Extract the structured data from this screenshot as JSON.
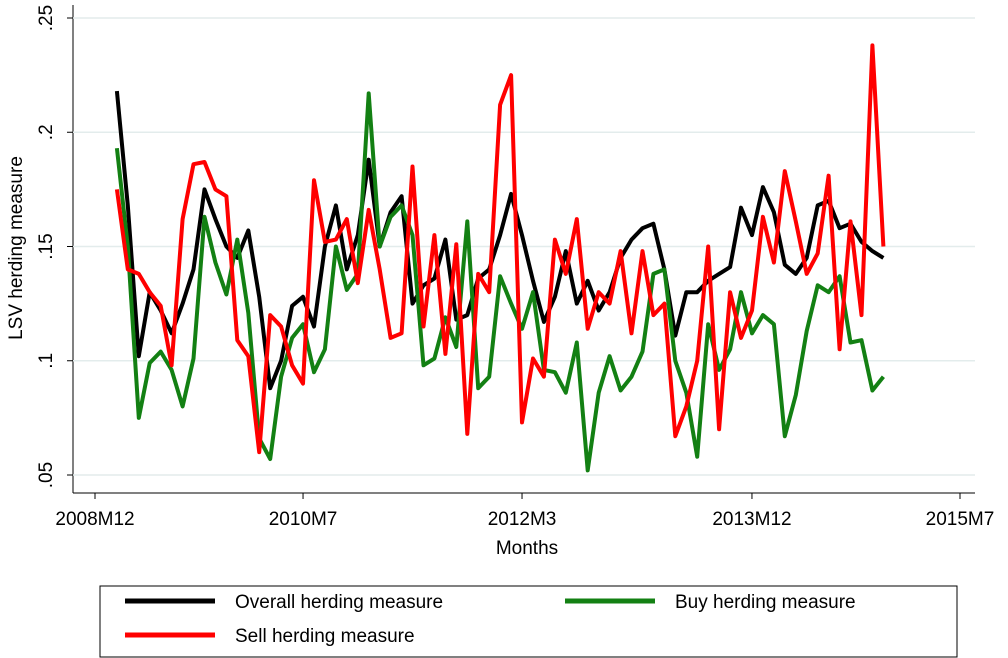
{
  "chart_data": {
    "type": "line",
    "ylabel": "LSV herding measure",
    "xlabel": "Months",
    "x": [
      "2009-02",
      "2009-03",
      "2009-04",
      "2009-05",
      "2009-06",
      "2009-07",
      "2009-08",
      "2009-09",
      "2009-10",
      "2009-11",
      "2009-12",
      "2010-01",
      "2010-02",
      "2010-03",
      "2010-04",
      "2010-05",
      "2010-06",
      "2010-07",
      "2010-08",
      "2010-09",
      "2010-10",
      "2010-11",
      "2010-12",
      "2011-01",
      "2011-02",
      "2011-03",
      "2011-04",
      "2011-05",
      "2011-06",
      "2011-07",
      "2011-08",
      "2011-09",
      "2011-10",
      "2011-11",
      "2011-12",
      "2012-01",
      "2012-02",
      "2012-03",
      "2012-04",
      "2012-05",
      "2012-06",
      "2012-07",
      "2012-08",
      "2012-09",
      "2012-10",
      "2012-11",
      "2012-12",
      "2013-01",
      "2013-02",
      "2013-03",
      "2013-04",
      "2013-05",
      "2013-06",
      "2013-07",
      "2013-08",
      "2013-09",
      "2013-10",
      "2013-11",
      "2013-12",
      "2014-01",
      "2014-02",
      "2014-03",
      "2014-04",
      "2014-05",
      "2014-06",
      "2014-07",
      "2014-08",
      "2014-09",
      "2014-10",
      "2014-11",
      "2014-12"
    ],
    "series": [
      {
        "name": "Overall herding measure",
        "color": "#000000",
        "values": [
          0.218,
          0.168,
          0.102,
          0.13,
          0.122,
          0.112,
          0.125,
          0.14,
          0.175,
          0.162,
          0.15,
          0.145,
          0.157,
          0.128,
          0.088,
          0.1,
          0.124,
          0.128,
          0.115,
          0.15,
          0.168,
          0.14,
          0.155,
          0.188,
          0.15,
          0.165,
          0.172,
          0.125,
          0.133,
          0.136,
          0.153,
          0.118,
          0.12,
          0.136,
          0.14,
          0.155,
          0.173,
          0.155,
          0.135,
          0.117,
          0.128,
          0.148,
          0.125,
          0.135,
          0.122,
          0.13,
          0.145,
          0.153,
          0.158,
          0.16,
          0.14,
          0.111,
          0.13,
          0.13,
          0.135,
          0.138,
          0.141,
          0.167,
          0.155,
          0.176,
          0.165,
          0.142,
          0.138,
          0.145,
          0.168,
          0.17,
          0.158,
          0.16,
          0.152,
          0.148,
          0.145
        ]
      },
      {
        "name": "Buy herding measure",
        "color": "#138013",
        "values": [
          0.193,
          0.15,
          0.075,
          0.099,
          0.104,
          0.096,
          0.08,
          0.101,
          0.163,
          0.143,
          0.129,
          0.153,
          0.121,
          0.066,
          0.057,
          0.093,
          0.11,
          0.116,
          0.095,
          0.105,
          0.15,
          0.131,
          0.138,
          0.217,
          0.15,
          0.163,
          0.168,
          0.155,
          0.098,
          0.101,
          0.119,
          0.106,
          0.161,
          0.088,
          0.093,
          0.137,
          0.125,
          0.114,
          0.13,
          0.096,
          0.095,
          0.086,
          0.108,
          0.052,
          0.086,
          0.102,
          0.087,
          0.093,
          0.104,
          0.138,
          0.14,
          0.1,
          0.086,
          0.058,
          0.116,
          0.096,
          0.105,
          0.13,
          0.112,
          0.12,
          0.116,
          0.067,
          0.085,
          0.113,
          0.133,
          0.13,
          0.137,
          0.108,
          0.109,
          0.087,
          0.093
        ]
      },
      {
        "name": "Sell herding measure",
        "color": "#ff0000",
        "values": [
          0.175,
          0.14,
          0.138,
          0.13,
          0.124,
          0.098,
          0.162,
          0.186,
          0.187,
          0.175,
          0.172,
          0.109,
          0.102,
          0.06,
          0.12,
          0.115,
          0.098,
          0.09,
          0.179,
          0.152,
          0.153,
          0.162,
          0.134,
          0.166,
          0.14,
          0.11,
          0.112,
          0.185,
          0.115,
          0.155,
          0.103,
          0.151,
          0.068,
          0.138,
          0.13,
          0.212,
          0.225,
          0.073,
          0.101,
          0.093,
          0.153,
          0.138,
          0.162,
          0.114,
          0.13,
          0.125,
          0.148,
          0.112,
          0.148,
          0.12,
          0.125,
          0.067,
          0.08,
          0.1,
          0.15,
          0.07,
          0.13,
          0.11,
          0.122,
          0.163,
          0.143,
          0.183,
          0.161,
          0.138,
          0.147,
          0.181,
          0.105,
          0.161,
          0.12,
          0.238,
          0.15
        ]
      }
    ],
    "xlim": [
      "2008-12",
      "2015-07"
    ],
    "xticks": [
      {
        "value": "2008-12",
        "label": "2008M12"
      },
      {
        "value": "2010-07",
        "label": "2010M7"
      },
      {
        "value": "2012-03",
        "label": "2012M3"
      },
      {
        "value": "2013-12",
        "label": "2013M12"
      },
      {
        "value": "2015-07",
        "label": "2015M7"
      }
    ],
    "ylim": [
      0.05,
      0.25
    ],
    "yticks": [
      {
        "value": 0.05,
        "label": ".05"
      },
      {
        "value": 0.1,
        "label": ".1"
      },
      {
        "value": 0.15,
        "label": ".15"
      },
      {
        "value": 0.2,
        "label": ".2"
      },
      {
        "value": 0.25,
        "label": ".25"
      }
    ],
    "grid": true
  }
}
